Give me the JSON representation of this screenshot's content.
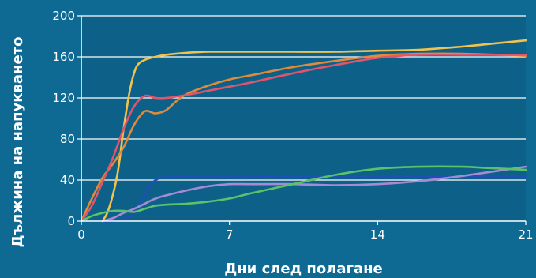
{
  "chart_data": {
    "type": "line",
    "title": "",
    "xlabel": "Дни след полагане",
    "ylabel": "Дължина на напукването",
    "xlim": [
      0,
      21
    ],
    "ylim": [
      0,
      200
    ],
    "x_ticks": [
      0,
      7,
      14,
      21
    ],
    "y_ticks": [
      0,
      40,
      80,
      120,
      160,
      200
    ],
    "grid": "horizontal",
    "legend": "none",
    "colors": {
      "background": "#0f6a93",
      "plot_background": "#0d6189",
      "axis": "#ffffff",
      "grid": "#ffffff"
    },
    "series": [
      {
        "color": "#f2c14e",
        "x": [
          1.0,
          1.3,
          1.7,
          2.0,
          2.3,
          2.6,
          3.0,
          3.5,
          4.0,
          5.0,
          6.0,
          7.0,
          8.0,
          10.0,
          12.0,
          14.0,
          16.0,
          18.0,
          19.0,
          20.0,
          21.0
        ],
        "y": [
          0,
          12,
          45,
          90,
          128,
          150,
          157,
          160,
          162,
          164,
          165,
          165,
          165,
          165,
          165,
          166,
          167,
          170,
          172,
          174,
          176
        ]
      },
      {
        "color": "#e08a3c",
        "x": [
          0,
          0.5,
          1.0,
          1.5,
          2.0,
          2.5,
          3.0,
          3.5,
          4.0,
          4.5,
          5.0,
          6.0,
          7.0,
          8.0,
          10.0,
          12.0,
          14.0,
          16.0,
          18.0,
          21.0
        ],
        "y": [
          0,
          22,
          42,
          56,
          72,
          94,
          107,
          105,
          108,
          117,
          124,
          132,
          138,
          142,
          150,
          156,
          161,
          163,
          163,
          161
        ]
      },
      {
        "color": "#e0556b",
        "x": [
          0,
          0.5,
          1.0,
          1.5,
          2.0,
          2.5,
          3.0,
          3.5,
          4.0,
          5.0,
          6.0,
          7.0,
          8.0,
          10.0,
          12.0,
          14.0,
          16.0,
          18.0,
          21.0
        ],
        "y": [
          0,
          15,
          38,
          62,
          90,
          112,
          122,
          120,
          120,
          123,
          127,
          131,
          135,
          144,
          152,
          159,
          162,
          162,
          162
        ]
      },
      {
        "color": "#1f4fb8",
        "x": [
          1.0,
          1.5,
          2.0,
          2.5,
          3.0,
          3.3,
          3.6,
          4.0,
          5.0,
          7.0,
          10.0,
          14.0,
          18.0,
          21.0
        ],
        "y": [
          0,
          0,
          2,
          8,
          25,
          36,
          41,
          43,
          44,
          44,
          44,
          44,
          44,
          44
        ]
      },
      {
        "color": "#a58ad6",
        "x": [
          1.0,
          1.5,
          2.0,
          2.5,
          3.0,
          3.5,
          4.0,
          5.0,
          6.0,
          7.0,
          8.0,
          10.0,
          12.0,
          14.0,
          16.0,
          18.0,
          21.0
        ],
        "y": [
          0,
          3,
          8,
          12,
          17,
          22,
          25,
          30,
          34,
          36,
          36,
          36,
          35,
          36,
          39,
          44,
          53
        ]
      },
      {
        "color": "#5cc26a",
        "x": [
          0,
          0.5,
          1.0,
          1.5,
          2.0,
          2.5,
          3.0,
          3.5,
          4.0,
          5.0,
          6.0,
          7.0,
          8.0,
          10.0,
          12.0,
          14.0,
          16.0,
          18.0,
          19.0,
          20.0,
          21.0
        ],
        "y": [
          0,
          5,
          8,
          10,
          10,
          9,
          12,
          15,
          16,
          17,
          19,
          22,
          27,
          36,
          45,
          51,
          53,
          53,
          52,
          51,
          50
        ]
      }
    ]
  }
}
